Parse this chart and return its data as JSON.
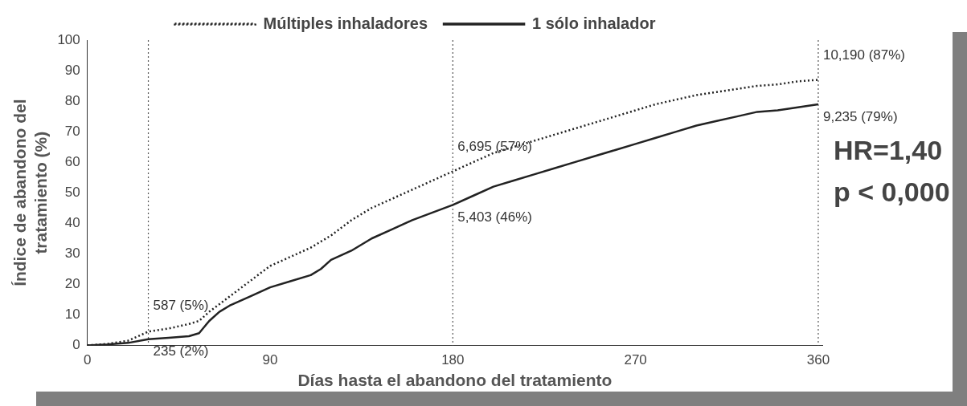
{
  "chart_data": {
    "type": "line",
    "xlabel": "Días hasta el abandono del tratamiento",
    "ylabel": "Índice de abandono del tratamiento (%)",
    "xlim": [
      0,
      362
    ],
    "xticks": [
      0,
      90,
      180,
      270,
      360
    ],
    "ylim": [
      0,
      100
    ],
    "yticks": [
      0,
      10,
      20,
      30,
      40,
      50,
      60,
      70,
      80,
      90,
      100
    ],
    "grid": false,
    "legend": "top",
    "marker": "none",
    "series": [
      {
        "name": "Múltiples inhaladores",
        "color": "#222222",
        "line_style": "dotted",
        "x": [
          0,
          10,
          20,
          30,
          40,
          50,
          55,
          60,
          70,
          80,
          90,
          100,
          110,
          120,
          130,
          140,
          150,
          160,
          170,
          180,
          190,
          200,
          210,
          220,
          230,
          240,
          250,
          260,
          270,
          280,
          290,
          300,
          310,
          320,
          330,
          340,
          350,
          360
        ],
        "values": [
          0,
          0.5,
          1.5,
          4.5,
          5.5,
          7,
          8,
          11,
          16,
          21,
          26,
          29,
          32,
          36,
          41,
          45,
          48,
          51,
          54,
          57,
          60,
          63,
          65,
          67,
          69,
          71,
          73,
          75,
          77,
          79,
          80.5,
          82,
          83,
          84,
          85,
          85.5,
          86.5,
          87
        ]
      },
      {
        "name": "1 sólo inhalador",
        "color": "#222222",
        "line_style": "solid",
        "x": [
          0,
          10,
          20,
          30,
          40,
          50,
          55,
          60,
          65,
          70,
          80,
          90,
          100,
          110,
          115,
          120,
          130,
          140,
          150,
          160,
          170,
          180,
          190,
          200,
          210,
          220,
          230,
          240,
          250,
          260,
          270,
          280,
          290,
          300,
          310,
          320,
          330,
          340,
          350,
          360
        ],
        "values": [
          0,
          0.3,
          0.8,
          2,
          2.5,
          3,
          4,
          8,
          11,
          13,
          16,
          19,
          21,
          23,
          25,
          28,
          31,
          35,
          38,
          41,
          43.5,
          46,
          49,
          52,
          54,
          56,
          58,
          60,
          62,
          64,
          66,
          68,
          70,
          72,
          73.5,
          75,
          76.5,
          77,
          78,
          79
        ]
      }
    ],
    "ref_lines": [
      {
        "axis": "x",
        "value": 30,
        "line_style": "dotted",
        "color": "#555555"
      },
      {
        "axis": "x",
        "value": 180,
        "line_style": "dotted",
        "color": "#555555"
      },
      {
        "axis": "x",
        "value": 360,
        "line_style": "dotted",
        "color": "#555555"
      }
    ],
    "annotations": [
      {
        "text": "587 (5%)",
        "x": 30,
        "y": 5
      },
      {
        "text": "235 (2%)",
        "x": 30,
        "y": 2
      },
      {
        "text": "6,695 (57%)",
        "x": 180,
        "y": 57
      },
      {
        "text": "5,403 (46%)",
        "x": 180,
        "y": 46
      },
      {
        "text": "10,190 (87%)",
        "x": 360,
        "y": 87
      },
      {
        "text": "9,235 (79%)",
        "x": 360,
        "y": 79
      },
      "HR=1,40",
      "p < 0,000"
    ]
  }
}
